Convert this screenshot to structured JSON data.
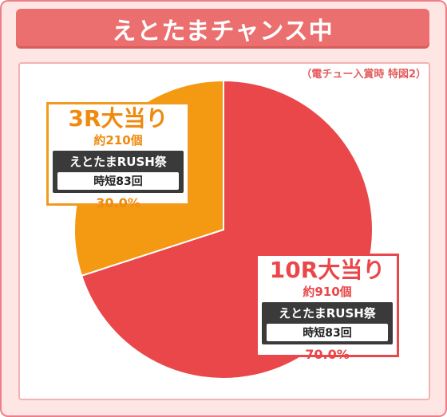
{
  "header": {
    "title": "えとたまチャンス中"
  },
  "note": "（電チュー入賞時 特図2）",
  "colors": {
    "big_win": "#e9474a",
    "small_win": "#f39a12",
    "frame": "#ef7f86",
    "header": "#ec6f6f"
  },
  "chart_data": {
    "type": "pie",
    "title": "えとたまチャンス中",
    "slices": [
      {
        "label": "10R大当り",
        "subtitle": "約910個",
        "mode": "えとたまRUSH祭",
        "detail": "時短83回",
        "value": 70.0,
        "value_label": "70.0%",
        "color": "#e9474a"
      },
      {
        "label": "3R大当り",
        "subtitle": "約210個",
        "mode": "えとたまRUSH祭",
        "detail": "時短83回",
        "value": 30.0,
        "value_label": "30.0%",
        "color": "#f39a12"
      }
    ]
  }
}
